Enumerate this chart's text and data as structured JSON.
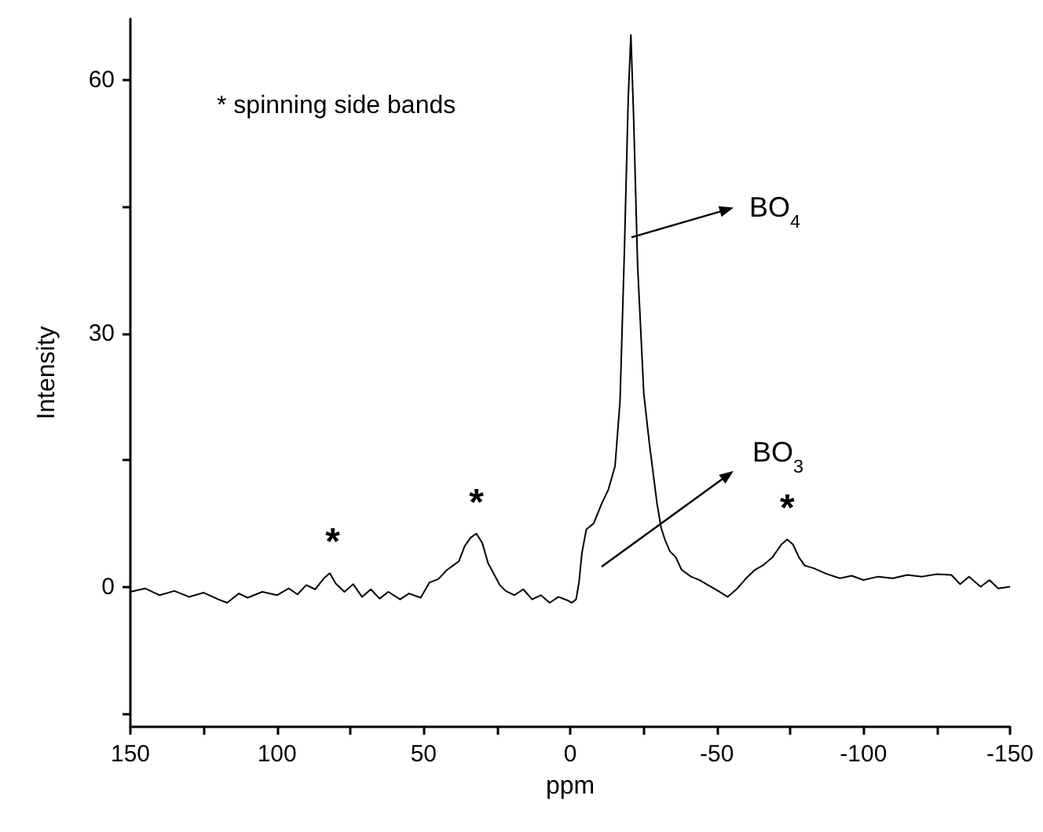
{
  "chart_data": {
    "type": "line",
    "xlabel": "ppm",
    "ylabel": "Intensity",
    "xlim": [
      150,
      -150
    ],
    "xticks": [
      150,
      {
        "value": 125,
        "label": null
      },
      100,
      {
        "value": 75,
        "label": null
      },
      50,
      {
        "value": 25,
        "label": null
      },
      0,
      {
        "value": -25,
        "label": null
      },
      -50,
      {
        "value": -75,
        "label": null
      },
      -100,
      {
        "value": -125,
        "label": null
      },
      -150
    ],
    "ylim": [
      -16.6,
      67.3
    ],
    "yticks": [
      {
        "value": -15,
        "label": null
      },
      0,
      {
        "value": 15,
        "label": null
      },
      30,
      {
        "value": 45,
        "label": null
      },
      60
    ],
    "x": [
      150,
      145,
      140,
      135,
      130,
      125,
      120,
      117,
      113,
      110,
      105,
      100,
      96,
      93,
      90,
      87,
      84,
      82,
      80,
      77,
      74,
      71,
      68,
      65,
      62,
      58,
      55,
      51,
      48,
      45,
      42,
      40,
      38,
      36,
      34,
      32,
      30,
      28,
      26,
      24,
      22,
      19,
      16,
      13,
      10,
      7,
      4,
      1,
      -0.5,
      -2,
      -3,
      -4,
      -5.5,
      -8,
      -10.8,
      -13,
      -15.3,
      -17,
      -18.5,
      -19.8,
      -20.7,
      -21.6,
      -23,
      -25.1,
      -27,
      -29.6,
      -31,
      -32.3,
      -34,
      -36,
      -38,
      -41.2,
      -44,
      -47,
      -50,
      -53.7,
      -57,
      -60,
      -63,
      -66,
      -69,
      -72,
      -74,
      -76,
      -78,
      -80,
      -83,
      -87.6,
      -92,
      -96,
      -100,
      -105,
      -110,
      -115,
      -120,
      -125,
      -130,
      -133,
      -136,
      -140,
      -143,
      -146,
      -150
    ],
    "series": [
      {
        "color": "#000000",
        "values": [
          -0.6,
          -0.2,
          -1.0,
          -0.5,
          -1.2,
          -0.7,
          -1.5,
          -1.9,
          -0.8,
          -1.3,
          -0.6,
          -1.0,
          -0.2,
          -0.9,
          0.2,
          -0.3,
          1.0,
          1.6,
          0.4,
          -0.6,
          0.3,
          -1.2,
          -0.3,
          -1.4,
          -0.6,
          -1.5,
          -0.8,
          -1.3,
          0.5,
          0.9,
          2.0,
          2.5,
          3.0,
          4.8,
          5.8,
          6.3,
          5.2,
          2.8,
          1.5,
          0.2,
          -0.5,
          -1.0,
          -0.3,
          -1.5,
          -1.0,
          -1.9,
          -1.2,
          -1.6,
          -1.9,
          -1.5,
          0.5,
          4.0,
          6.8,
          7.5,
          9.9,
          11.5,
          14.3,
          22,
          40,
          58,
          65.4,
          56,
          38,
          22.9,
          17,
          9.9,
          7,
          5.6,
          4.2,
          3.5,
          2.0,
          1.2,
          0.8,
          0.2,
          -0.4,
          -1.2,
          -0.2,
          1.0,
          2.0,
          2.6,
          3.5,
          5.0,
          5.6,
          5.0,
          3.5,
          2.5,
          2.2,
          1.5,
          1.0,
          1.3,
          0.8,
          1.2,
          1.0,
          1.4,
          1.2,
          1.5,
          1.4,
          0.3,
          1.2,
          0.0,
          0.8,
          -0.2,
          0.0
        ]
      }
    ],
    "annotations": [
      "* spinning side bands",
      {
        "text": "*",
        "x": 81,
        "y": 1.6
      },
      {
        "text": "*",
        "x": 32,
        "y": 6.3
      },
      {
        "text": "*",
        "x": -74,
        "y": 5.6
      },
      {
        "text": "BO$_{4}$",
        "x": -20.9,
        "y": 41.4
      },
      "BO$_{3}$"
    ]
  }
}
